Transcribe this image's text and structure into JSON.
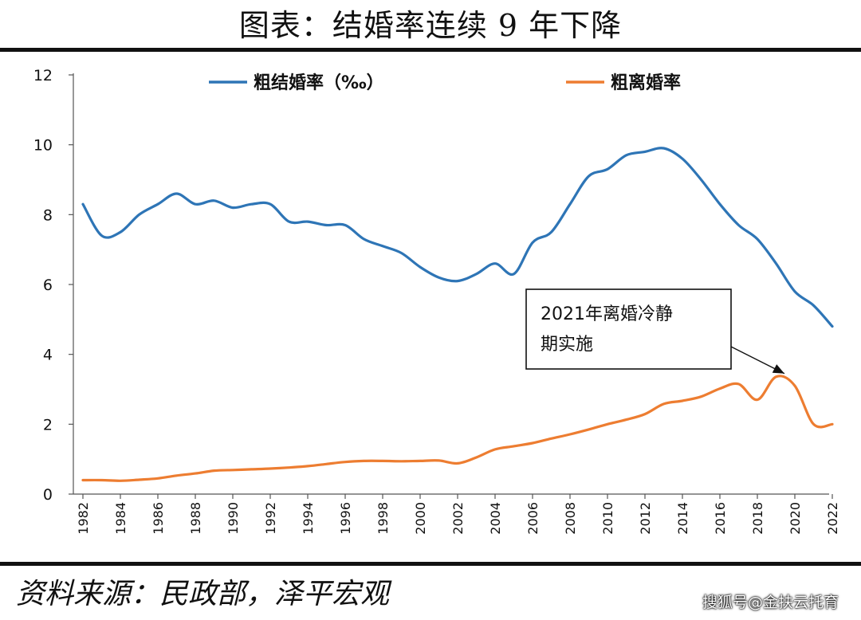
{
  "header": {
    "title": "图表：结婚率连续 9 年下降"
  },
  "footer": {
    "source": "资料来源：民政部，泽平宏观",
    "watermark": "搜狐号@金扶云托育"
  },
  "chart_data": {
    "type": "line",
    "title": "图表：结婚率连续 9 年下降",
    "xlabel": "",
    "ylabel": "",
    "xlim": [
      1982,
      2022
    ],
    "ylim": [
      0,
      12
    ],
    "yticks": [
      0,
      2,
      4,
      6,
      8,
      10,
      12
    ],
    "xticks": [
      1982,
      1984,
      1986,
      1988,
      1990,
      1992,
      1994,
      1996,
      1998,
      2000,
      2002,
      2004,
      2006,
      2008,
      2010,
      2012,
      2014,
      2016,
      2018,
      2020,
      2022
    ],
    "xtick_labels": [
      "1982",
      "1984",
      "1986",
      "1988",
      "1990",
      "1992",
      "1994",
      "1996",
      "1998",
      "2000",
      "2002",
      "2004",
      "2006",
      "2008",
      "2010",
      "2012",
      "2014",
      "2016",
      "2018",
      "2020",
      "2022"
    ],
    "grid": false,
    "legend_position": "top",
    "series": [
      {
        "name": "粗结婚率（‰）",
        "color": "#2E75B6",
        "x": [
          1982,
          1983,
          1984,
          1985,
          1986,
          1987,
          1988,
          1989,
          1990,
          1991,
          1992,
          1993,
          1994,
          1995,
          1996,
          1997,
          1998,
          1999,
          2000,
          2001,
          2002,
          2003,
          2004,
          2005,
          2006,
          2007,
          2008,
          2009,
          2010,
          2011,
          2012,
          2013,
          2014,
          2015,
          2016,
          2017,
          2018,
          2019,
          2020,
          2021,
          2022
        ],
        "y": [
          8.3,
          7.4,
          7.5,
          8.0,
          8.3,
          8.6,
          8.3,
          8.4,
          8.2,
          8.3,
          8.3,
          7.8,
          7.8,
          7.7,
          7.7,
          7.3,
          7.1,
          6.9,
          6.5,
          6.2,
          6.1,
          6.3,
          6.6,
          6.3,
          7.2,
          7.5,
          8.3,
          9.1,
          9.3,
          9.7,
          9.8,
          9.9,
          9.6,
          9.0,
          8.3,
          7.7,
          7.3,
          6.6,
          5.8,
          5.4,
          4.8
        ]
      },
      {
        "name": "粗离婚率",
        "color": "#ED7D31",
        "x": [
          1982,
          1983,
          1984,
          1985,
          1986,
          1987,
          1988,
          1989,
          1990,
          1991,
          1992,
          1993,
          1994,
          1995,
          1996,
          1997,
          1998,
          1999,
          2000,
          2001,
          2002,
          2003,
          2004,
          2005,
          2006,
          2007,
          2008,
          2009,
          2010,
          2011,
          2012,
          2013,
          2014,
          2015,
          2016,
          2017,
          2018,
          2019,
          2020,
          2021,
          2022
        ],
        "y": [
          0.4,
          0.4,
          0.38,
          0.41,
          0.45,
          0.53,
          0.59,
          0.67,
          0.69,
          0.71,
          0.73,
          0.76,
          0.8,
          0.86,
          0.92,
          0.95,
          0.95,
          0.94,
          0.95,
          0.96,
          0.88,
          1.05,
          1.28,
          1.37,
          1.46,
          1.59,
          1.71,
          1.85,
          2.0,
          2.13,
          2.29,
          2.58,
          2.67,
          2.79,
          3.02,
          3.15,
          2.7,
          3.36,
          3.1,
          2.0,
          2.0
        ]
      }
    ],
    "annotation": {
      "text_line1": "2021年离婚冷静",
      "text_line2": "期实施",
      "x": 2019.7,
      "y": 3.36
    }
  }
}
